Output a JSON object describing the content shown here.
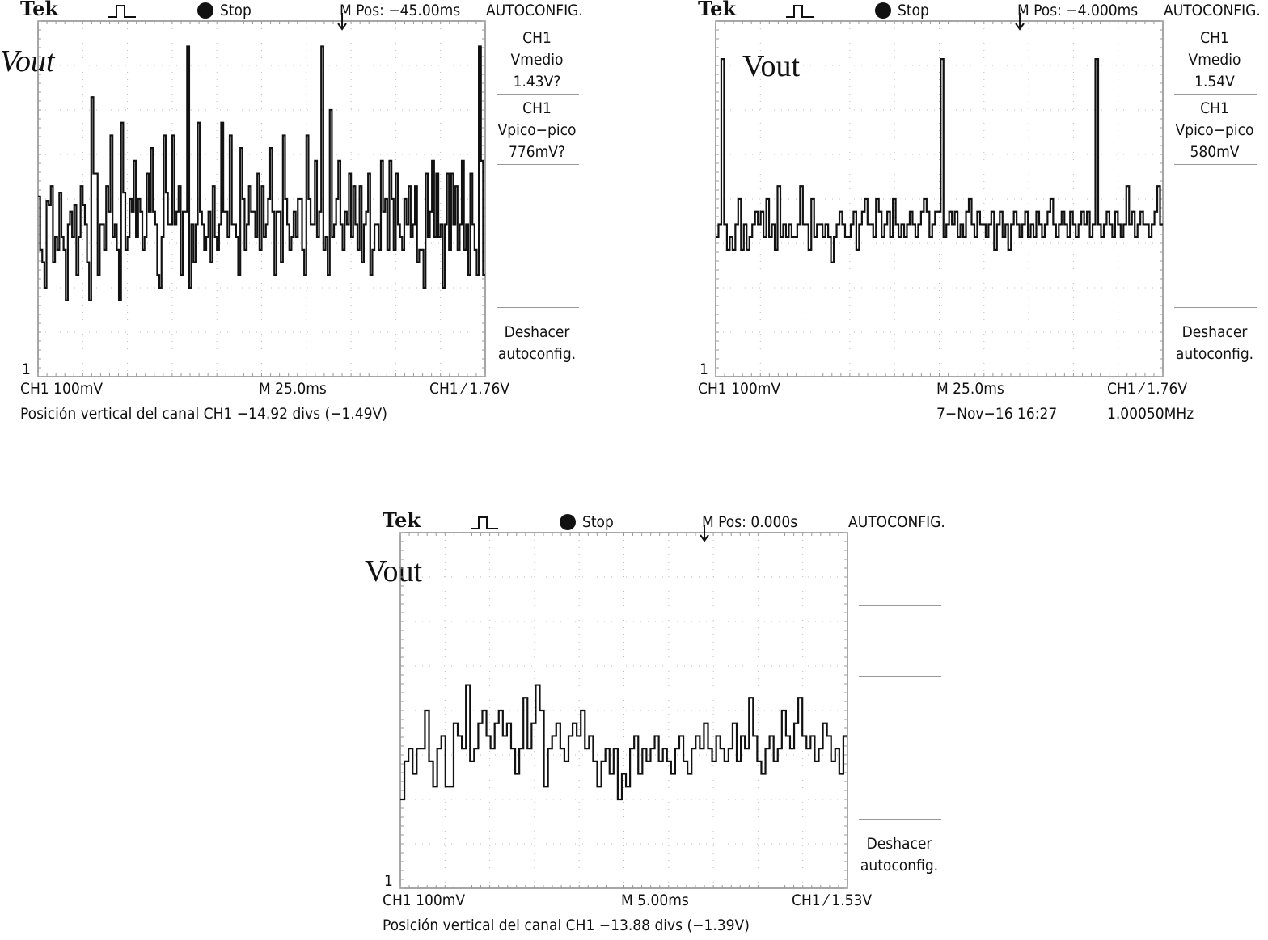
{
  "scopes": [
    {
      "brand": "Tek",
      "status": "Stop",
      "m_pos": "M Pos: −45.00ms",
      "autoconfig": "AUTOCONFIG.",
      "trace_label": "Vout",
      "meas1": {
        "channel": "CH1",
        "label": "Vmedio",
        "value": "1.43V?"
      },
      "meas2": {
        "channel": "CH1",
        "label": "Vpico−pico",
        "value": "776mV?"
      },
      "undo": {
        "line1": "Deshacer",
        "line2": "autoconfig."
      },
      "ch_marker": "1",
      "scale": "CH1  100mV",
      "timebase": "M 25.0ms",
      "trigger": "CH1 ⁄ 1.76V",
      "footer_left": "Posición vertical del canal CH1 −14.92 divs (−1.49V)"
    },
    {
      "brand": "Tek",
      "status": "Stop",
      "m_pos": "M Pos: −4.000ms",
      "autoconfig": "AUTOCONFIG.",
      "trace_label": "Vout",
      "meas1": {
        "channel": "CH1",
        "label": "Vmedio",
        "value": "1.54V"
      },
      "meas2": {
        "channel": "CH1",
        "label": "Vpico−pico",
        "value": "580mV"
      },
      "undo": {
        "line1": "Deshacer",
        "line2": "autoconfig."
      },
      "ch_marker": "1",
      "scale": "CH1  100mV",
      "timebase": "M 25.0ms",
      "trigger": "CH1 ⁄ 1.76V",
      "footer_date": "7−Nov−16 16:27",
      "footer_freq": "1.00050MHz"
    },
    {
      "brand": "Tek",
      "status": "Stop",
      "m_pos": "M Pos: 0.000s",
      "autoconfig": "AUTOCONFIG.",
      "trace_label": "Vout",
      "undo": {
        "line1": "Deshacer",
        "line2": "autoconfig."
      },
      "ch_marker": "1",
      "scale": "CH1  100mV",
      "timebase": "M 5.00ms",
      "trigger": "CH1 ⁄ 1.53V",
      "footer_left": "Posición vertical del canal CH1 −13.88 divs (−1.39V)"
    }
  ],
  "chart_data": [
    {
      "type": "line",
      "series": [
        {
          "values": [
            0.02,
            -0.4,
            -0.5,
            -0.7,
            -0.02,
            -0.05,
            0.1,
            -0.5,
            -0.3,
            -0.4,
            0.05,
            -0.3,
            -0.4,
            -0.8,
            -0.2,
            -0.1,
            -0.3,
            -0.05,
            -0.6,
            -0.3,
            0.1,
            -0.05,
            -0.2,
            -0.5,
            -0.8,
            0.8,
            0.2,
            0.2,
            -0.6,
            -0.2,
            -0.2,
            -0.4,
            0.1,
            -0.1,
            0.5,
            -0.3,
            -0.2,
            -0.4,
            -0.8,
            0.6,
            0.05,
            -0.4,
            -0.3,
            0.0,
            -0.1,
            0.3,
            -0.3,
            0.0,
            -0.1,
            -0.4,
            -0.3,
            0.2,
            -0.1,
            0.4,
            -0.1,
            -0.2,
            -0.6,
            -0.7,
            -0.3,
            0.5,
            0.05,
            -0.2,
            -0.2,
            0.5,
            -0.2,
            -0.1,
            0.1,
            -0.6,
            -0.1,
            -0.1,
            1.2,
            -0.7,
            -0.2,
            -0.5,
            -0.2,
            0.6,
            -0.1,
            -0.2,
            -0.4,
            -0.3,
            -0.1,
            -0.5,
            0.1,
            -0.3,
            -0.4,
            -0.2,
            0.6,
            -0.1,
            -0.1,
            -0.3,
            0.5,
            -0.2,
            -0.2,
            -0.3,
            -0.6,
            0.4,
            0.0,
            -0.4,
            -0.2,
            0.1,
            -0.1,
            -0.1,
            -0.3,
            0.2,
            -0.4,
            0.1,
            -0.3,
            -0.2,
            0.0,
            0.4,
            -0.1,
            -0.6,
            -0.1,
            -0.1,
            -0.5,
            0.5,
            0.0,
            -0.2,
            -0.4,
            -0.3,
            -0.1,
            -0.3,
            0.0,
            0.0,
            -0.4,
            -0.6,
            0.5,
            0.0,
            -0.2,
            -0.2,
            0.3,
            -0.3,
            -0.1,
            1.2,
            -0.4,
            -0.3,
            -0.6,
            0.7,
            -0.3,
            -0.2,
            0.0,
            0.3,
            -0.2,
            -0.4,
            -0.1,
            -0.2,
            0.2,
            -0.3,
            0.1,
            -0.2,
            -0.4,
            0.1,
            -0.5,
            -0.2,
            -0.1,
            0.2,
            -0.6,
            -0.4,
            -0.2,
            -0.2,
            -0.4,
            0.3,
            -0.1,
            0.0,
            -0.4,
            0.3,
            0.0,
            -0.4,
            0.2,
            -0.2,
            -0.3,
            -0.4,
            0.0,
            -0.2,
            0.1,
            -0.3,
            -0.2,
            0.1,
            -0.5,
            -0.4,
            -0.4,
            -0.7,
            0.2,
            -0.3,
            -0.1,
            0.3,
            -0.3,
            0.2,
            -0.3,
            -0.2,
            -0.7,
            -0.2,
            0.2,
            -0.4,
            0.2,
            -0.2,
            0.1,
            -0.4,
            -0.2,
            0.3,
            -0.4,
            -0.2,
            -0.6,
            0.2,
            -0.2,
            -0.4,
            -0.6,
            1.2,
            0.3,
            -0.6
          ]
        }
      ],
      "xlabel": "M 25.0ms",
      "ylabel": "CH1  100mV",
      "grid": true
    },
    {
      "type": "line",
      "series": [
        {
          "values": [
            -0.3,
            -0.2,
            1.1,
            -0.2,
            -0.4,
            -0.3,
            -0.4,
            -0.2,
            0.0,
            -0.4,
            -0.2,
            -0.4,
            -0.3,
            -0.2,
            -0.1,
            -0.2,
            -0.1,
            -0.3,
            0.0,
            -0.3,
            -0.2,
            -0.4,
            0.1,
            -0.3,
            -0.2,
            -0.3,
            -0.2,
            -0.3,
            -0.3,
            -0.2,
            0.1,
            -0.2,
            -0.2,
            -0.4,
            0.0,
            -0.3,
            -0.2,
            -0.2,
            -0.3,
            -0.2,
            -0.3,
            -0.5,
            -0.3,
            -0.2,
            -0.1,
            -0.2,
            -0.3,
            -0.3,
            -0.2,
            -0.1,
            -0.4,
            -0.2,
            -0.1,
            0.0,
            -0.2,
            -0.2,
            -0.3,
            0.0,
            -0.1,
            -0.3,
            -0.2,
            -0.1,
            -0.3,
            0.0,
            -0.2,
            -0.3,
            -0.2,
            -0.3,
            -0.2,
            -0.1,
            -0.2,
            -0.3,
            -0.2,
            -0.1,
            0.0,
            -0.1,
            -0.3,
            -0.2,
            -0.1,
            -0.1,
            1.1,
            -0.3,
            -0.2,
            -0.1,
            -0.2,
            -0.1,
            -0.3,
            -0.2,
            -0.3,
            -0.1,
            0.0,
            -0.2,
            -0.3,
            -0.1,
            -0.2,
            -0.2,
            -0.3,
            -0.2,
            -0.1,
            -0.4,
            -0.2,
            -0.1,
            -0.3,
            -0.2,
            -0.4,
            -0.2,
            -0.1,
            -0.2,
            -0.3,
            -0.2,
            -0.1,
            -0.3,
            -0.2,
            -0.3,
            -0.1,
            -0.2,
            -0.3,
            -0.2,
            -0.1,
            0.0,
            -0.2,
            -0.3,
            -0.2,
            -0.1,
            -0.2,
            -0.3,
            -0.1,
            -0.2,
            -0.3,
            -0.2,
            -0.1,
            -0.2,
            -0.1,
            -0.3,
            -0.2,
            1.1,
            -0.2,
            -0.3,
            -0.2,
            -0.1,
            -0.2,
            -0.3,
            -0.1,
            -0.2,
            -0.3,
            -0.2,
            0.1,
            -0.2,
            -0.1,
            -0.3,
            -0.2,
            -0.1,
            -0.2,
            -0.2,
            -0.3,
            -0.2,
            -0.1,
            0.1,
            -0.2
          ]
        }
      ],
      "xlabel": "M 25.0ms",
      "ylabel": "CH1  100mV",
      "grid": true
    },
    {
      "type": "line",
      "series": [
        {
          "values": [
            -0.7,
            -0.4,
            -0.3,
            -0.5,
            -0.3,
            -0.3,
            0.0,
            -0.4,
            -0.6,
            -0.3,
            -0.2,
            -0.6,
            -0.6,
            -0.1,
            -0.2,
            -0.3,
            0.2,
            -0.4,
            -0.3,
            -0.1,
            0.0,
            -0.2,
            -0.3,
            -0.1,
            0.0,
            -0.2,
            -0.1,
            -0.3,
            -0.5,
            -0.3,
            0.1,
            -0.3,
            -0.1,
            0.2,
            0.0,
            -0.6,
            -0.3,
            -0.2,
            -0.1,
            -0.3,
            -0.4,
            -0.2,
            -0.1,
            -0.2,
            0.0,
            -0.3,
            -0.2,
            -0.4,
            -0.6,
            -0.4,
            -0.3,
            -0.5,
            -0.3,
            -0.7,
            -0.5,
            -0.6,
            -0.3,
            -0.2,
            -0.5,
            -0.3,
            -0.4,
            -0.3,
            -0.2,
            -0.4,
            -0.3,
            -0.4,
            -0.5,
            -0.3,
            -0.2,
            -0.4,
            -0.5,
            -0.3,
            -0.2,
            -0.3,
            -0.1,
            -0.3,
            -0.4,
            -0.2,
            -0.3,
            -0.4,
            -0.3,
            -0.1,
            -0.4,
            -0.2,
            -0.3,
            0.1,
            -0.2,
            -0.4,
            -0.5,
            -0.3,
            -0.2,
            -0.4,
            -0.3,
            0.0,
            -0.2,
            -0.3,
            -0.1,
            0.1,
            -0.2,
            -0.3,
            -0.2,
            -0.4,
            -0.3,
            -0.1,
            -0.2,
            -0.4,
            -0.3,
            -0.5,
            -0.2
          ]
        }
      ],
      "xlabel": "M 5.00ms",
      "ylabel": "CH1  100mV",
      "grid": true
    }
  ]
}
